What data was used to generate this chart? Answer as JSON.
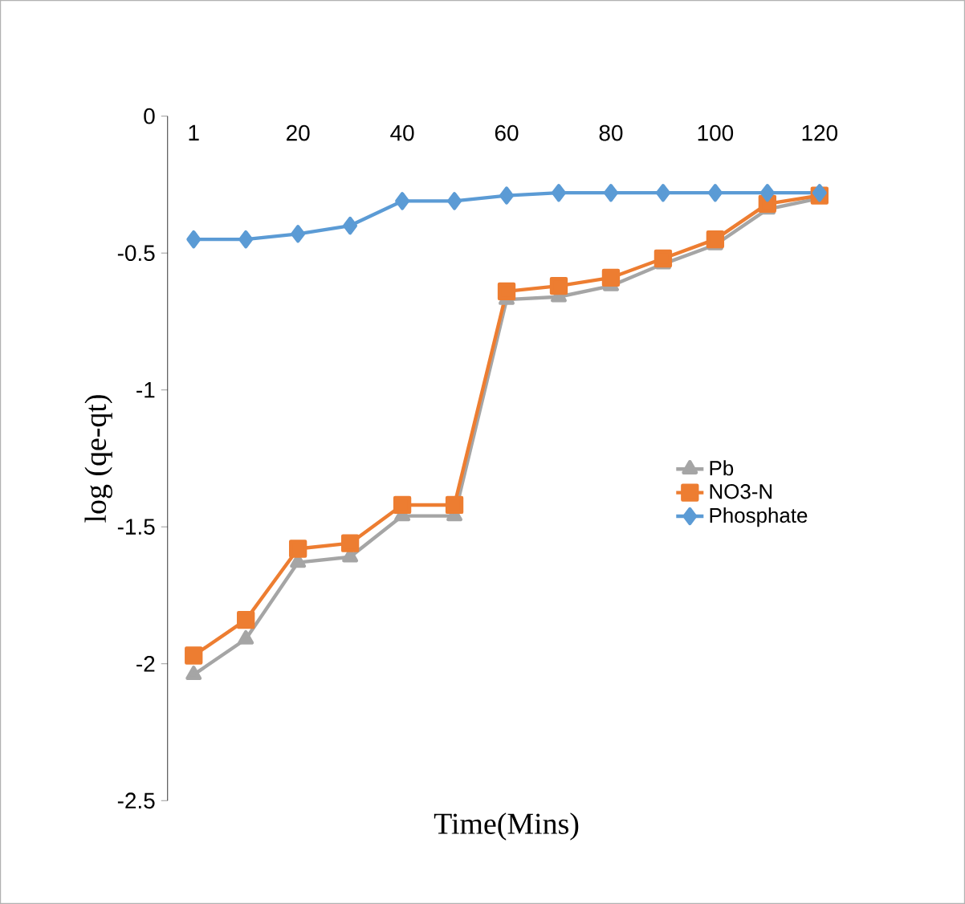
{
  "chart_data": {
    "type": "line",
    "xlabel": "Time(Mins)",
    "ylabel": "log (qe-qt)",
    "categories": [
      "1",
      null,
      "20",
      null,
      "40",
      null,
      "60",
      null,
      "80",
      null,
      "100",
      null,
      "120"
    ],
    "ylim": [
      -2.5,
      0
    ],
    "yticks": [
      -2.5,
      -2,
      -1.5,
      -1,
      -0.5,
      0
    ],
    "grid": false,
    "legend": "right",
    "series": [
      {
        "name": "Pb",
        "color": "#a5a5a5",
        "marker": "triangle",
        "values": [
          -2.04,
          -1.91,
          -1.63,
          -1.61,
          -1.46,
          -1.46,
          -0.67,
          -0.66,
          -0.62,
          -0.54,
          -0.47,
          -0.34,
          -0.3
        ]
      },
      {
        "name": "NO3-N",
        "color": "#ed7d31",
        "marker": "square",
        "values": [
          -1.97,
          -1.84,
          -1.58,
          -1.56,
          -1.42,
          -1.42,
          -0.64,
          -0.62,
          -0.59,
          -0.52,
          -0.45,
          -0.32,
          -0.29
        ]
      },
      {
        "name": "Phosphate",
        "color": "#5b9bd5",
        "marker": "diamond",
        "values": [
          -0.45,
          -0.45,
          -0.43,
          -0.4,
          -0.31,
          -0.31,
          -0.29,
          -0.28,
          -0.28,
          -0.28,
          -0.28,
          -0.28,
          -0.28
        ]
      }
    ]
  }
}
